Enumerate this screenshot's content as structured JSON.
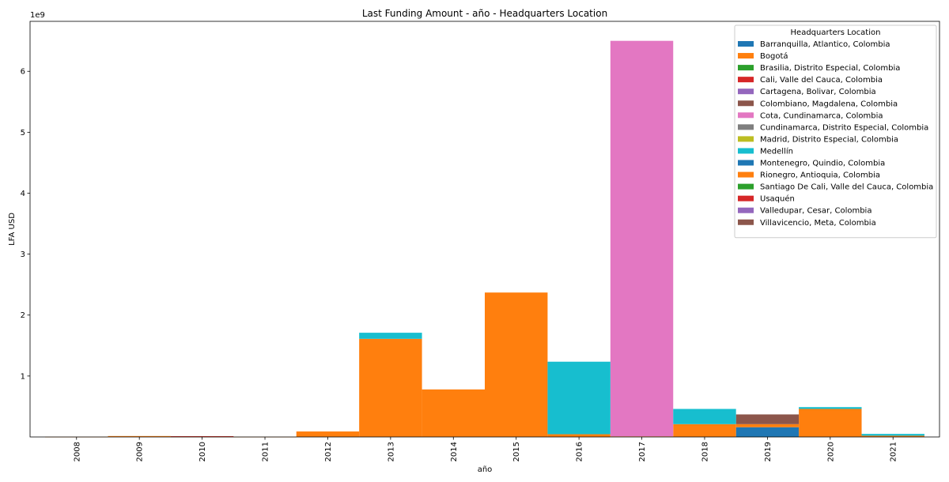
{
  "chart_data": {
    "type": "bar",
    "stacked": true,
    "title": "Last Funding Amount - año - Headquarters Location",
    "xlabel": "año",
    "ylabel": "LFA USD",
    "y_offset_label": "1e9",
    "y_scale": 1000000000,
    "categories": [
      "2008",
      "2009",
      "2010",
      "2011",
      "2012",
      "2013",
      "2014",
      "2015",
      "2016",
      "2017",
      "2018",
      "2019",
      "2020",
      "2021"
    ],
    "ylim": [
      0,
      6820000000
    ],
    "yticks": [
      1000000000,
      2000000000,
      3000000000,
      4000000000,
      5000000000,
      6000000000
    ],
    "ytick_labels": [
      "1",
      "2",
      "3",
      "4",
      "5",
      "6"
    ],
    "grid": false,
    "legend": {
      "title": "Headquarters Location",
      "position": "top-right"
    },
    "series": [
      {
        "name": "Barranquilla, Atlantico, Colombia",
        "color": "#1f77b4",
        "values": [
          0,
          0,
          0,
          0,
          0,
          0,
          0,
          0,
          0,
          0,
          0,
          160000000,
          0,
          0
        ]
      },
      {
        "name": "Bogotá",
        "color": "#ff7f0e",
        "values": [
          2000000,
          15000000,
          5000000,
          2000000,
          90000000,
          1610000000,
          780000000,
          2370000000,
          45000000,
          10000000,
          210000000,
          50000000,
          460000000,
          20000000
        ]
      },
      {
        "name": "Brasilia, Distrito Especial, Colombia",
        "color": "#2ca02c",
        "values": [
          0,
          0,
          0,
          0,
          0,
          0,
          0,
          0,
          0,
          0,
          0,
          0,
          0,
          0
        ]
      },
      {
        "name": "Cali, Valle del Cauca, Colombia",
        "color": "#d62728",
        "values": [
          0,
          0,
          8000000,
          0,
          0,
          0,
          0,
          0,
          0,
          0,
          0,
          0,
          0,
          0
        ]
      },
      {
        "name": "Cartagena, Bolivar, Colombia",
        "color": "#9467bd",
        "values": [
          0,
          0,
          0,
          0,
          0,
          0,
          0,
          0,
          0,
          0,
          0,
          0,
          0,
          0
        ]
      },
      {
        "name": "Colombiano, Magdalena, Colombia",
        "color": "#8c564b",
        "values": [
          0,
          0,
          0,
          0,
          0,
          0,
          0,
          0,
          0,
          0,
          0,
          160000000,
          0,
          0
        ]
      },
      {
        "name": "Cota, Cundinamarca, Colombia",
        "color": "#e377c2",
        "values": [
          0,
          0,
          0,
          0,
          0,
          0,
          0,
          0,
          0,
          6490000000,
          0,
          0,
          0,
          0
        ]
      },
      {
        "name": "Cundinamarca, Distrito Especial, Colombia",
        "color": "#7f7f7f",
        "values": [
          0,
          0,
          0,
          0,
          0,
          0,
          0,
          0,
          0,
          0,
          0,
          0,
          0,
          0
        ]
      },
      {
        "name": "Madrid, Distrito Especial, Colombia",
        "color": "#bcbd22",
        "values": [
          0,
          0,
          0,
          0,
          0,
          0,
          0,
          0,
          0,
          0,
          0,
          0,
          0,
          0
        ]
      },
      {
        "name": "Medellín",
        "color": "#17becf",
        "values": [
          0,
          0,
          0,
          0,
          0,
          100000000,
          0,
          0,
          1190000000,
          0,
          250000000,
          0,
          30000000,
          30000000
        ]
      },
      {
        "name": "Montenegro, Quindio, Colombia",
        "color": "#1f77b4",
        "values": [
          0,
          0,
          0,
          0,
          0,
          0,
          0,
          0,
          0,
          0,
          0,
          0,
          0,
          0
        ]
      },
      {
        "name": "Rionegro, Antioquia, Colombia",
        "color": "#ff7f0e",
        "values": [
          0,
          0,
          0,
          0,
          0,
          0,
          0,
          0,
          0,
          0,
          0,
          0,
          0,
          0
        ]
      },
      {
        "name": "Santiago De Cali, Valle del Cauca, Colombia",
        "color": "#2ca02c",
        "values": [
          0,
          0,
          0,
          0,
          0,
          0,
          0,
          0,
          0,
          0,
          0,
          0,
          0,
          0
        ]
      },
      {
        "name": "Usaquén",
        "color": "#d62728",
        "values": [
          0,
          0,
          0,
          0,
          0,
          0,
          0,
          0,
          0,
          0,
          0,
          0,
          0,
          0
        ]
      },
      {
        "name": "Valledupar, Cesar, Colombia",
        "color": "#9467bd",
        "values": [
          0,
          0,
          0,
          0,
          0,
          0,
          0,
          0,
          0,
          0,
          0,
          0,
          0,
          0
        ]
      },
      {
        "name": "Villavicencio, Meta, Colombia",
        "color": "#8c564b",
        "values": [
          0,
          0,
          0,
          0,
          0,
          0,
          0,
          0,
          0,
          0,
          0,
          0,
          0,
          0
        ]
      }
    ]
  }
}
